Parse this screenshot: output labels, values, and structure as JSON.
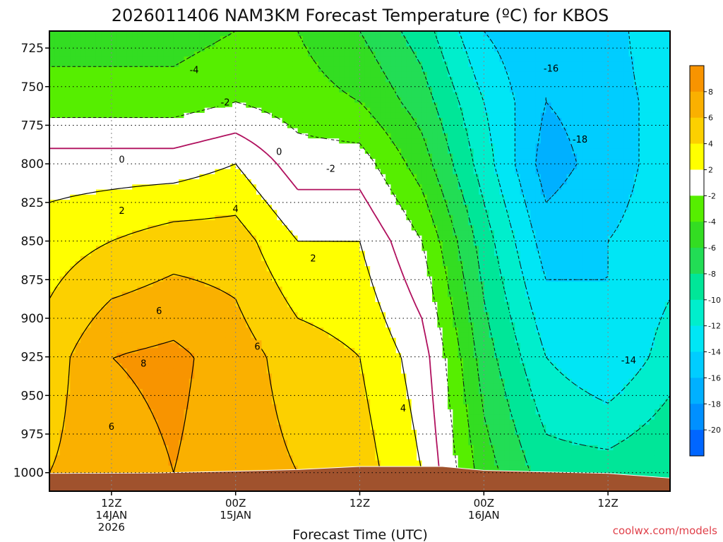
{
  "chart_data": {
    "type": "heatmap",
    "title": "2026011406 NAM3KM Forecast Temperature (ºC) for KBOS",
    "xlabel": "Forecast Time (UTC)",
    "ylabel": "",
    "credit": "coolwx.com/models",
    "x_range_hours": [
      0,
      60
    ],
    "y_range_hpa": [
      714,
      1012
    ],
    "y_ticks": [
      725,
      750,
      775,
      800,
      825,
      850,
      875,
      900,
      925,
      950,
      975,
      1000
    ],
    "y_tick_labels": [
      "725",
      "750",
      "775",
      "800",
      "825",
      "850",
      "875",
      "900",
      "925",
      "950",
      "975",
      "1000"
    ],
    "x_ticks": [
      {
        "hour": 6,
        "line1": "12Z",
        "line2": "14JAN",
        "line3": "2026"
      },
      {
        "hour": 18,
        "line1": "00Z",
        "line2": "15JAN",
        "line3": ""
      },
      {
        "hour": 30,
        "line1": "12Z",
        "line2": "",
        "line3": ""
      },
      {
        "hour": 42,
        "line1": "00Z",
        "line2": "16JAN",
        "line3": ""
      },
      {
        "hour": 54,
        "line1": "12Z",
        "line2": "",
        "line3": ""
      }
    ],
    "grid": true,
    "colorbar_ticks": [
      "8",
      "6",
      "4",
      "2",
      "-2",
      "-4",
      "-6",
      "-8",
      "-10",
      "-12",
      "-14",
      "-16",
      "-18",
      "-20"
    ],
    "colorbar_colors": [
      "#f89400",
      "#fab000",
      "#fcd000",
      "#ffff00",
      "#ffffff",
      "#56ee00",
      "#33dd22",
      "#22dd55",
      "#00e698",
      "#00eecc",
      "#00e6f5",
      "#00cdff",
      "#00b0ff",
      "#0090ff",
      "#0066ff"
    ],
    "colorbar_placement": "right",
    "surface_pressure": [
      {
        "t": 0,
        "p": 1000.5
      },
      {
        "t": 10,
        "p": 1000.2
      },
      {
        "t": 18,
        "p": 999.0
      },
      {
        "t": 24,
        "p": 998.0
      },
      {
        "t": 30,
        "p": 996.0
      },
      {
        "t": 38,
        "p": 996.0
      },
      {
        "t": 42,
        "p": 998.5
      },
      {
        "t": 48,
        "p": 999.5
      },
      {
        "t": 54,
        "p": 1000.5
      },
      {
        "t": 60,
        "p": 1003.5
      }
    ],
    "temperature_profile_by_hour": [
      {
        "t": 0,
        "temps": [
          {
            "p": 714,
            "c": -5
          },
          {
            "p": 760,
            "c": -3
          },
          {
            "p": 800,
            "c": 1
          },
          {
            "p": 850,
            "c": 3
          },
          {
            "p": 925,
            "c": 5
          },
          {
            "p": 1000,
            "c": 6
          }
        ]
      },
      {
        "t": 6,
        "temps": [
          {
            "p": 714,
            "c": -5
          },
          {
            "p": 760,
            "c": -3
          },
          {
            "p": 800,
            "c": 1
          },
          {
            "p": 850,
            "c": 4
          },
          {
            "p": 925,
            "c": 8
          },
          {
            "p": 1000,
            "c": 7
          }
        ]
      },
      {
        "t": 12,
        "temps": [
          {
            "p": 714,
            "c": -5
          },
          {
            "p": 760,
            "c": -3
          },
          {
            "p": 800,
            "c": 1
          },
          {
            "p": 850,
            "c": 5
          },
          {
            "p": 925,
            "c": 8.5
          },
          {
            "p": 1000,
            "c": 8
          }
        ]
      },
      {
        "t": 18,
        "temps": [
          {
            "p": 714,
            "c": -4
          },
          {
            "p": 760,
            "c": -2
          },
          {
            "p": 800,
            "c": 2
          },
          {
            "p": 850,
            "c": 5
          },
          {
            "p": 925,
            "c": 7
          },
          {
            "p": 1000,
            "c": 7
          }
        ]
      },
      {
        "t": 24,
        "temps": [
          {
            "p": 714,
            "c": -4
          },
          {
            "p": 760,
            "c": -3
          },
          {
            "p": 800,
            "c": -1
          },
          {
            "p": 850,
            "c": 2
          },
          {
            "p": 925,
            "c": 5
          },
          {
            "p": 1000,
            "c": 6
          }
        ]
      },
      {
        "t": 30,
        "temps": [
          {
            "p": 714,
            "c": -6
          },
          {
            "p": 760,
            "c": -4
          },
          {
            "p": 800,
            "c": -1
          },
          {
            "p": 850,
            "c": 2
          },
          {
            "p": 925,
            "c": 4
          },
          {
            "p": 1000,
            "c": 5
          }
        ]
      },
      {
        "t": 36,
        "temps": [
          {
            "p": 714,
            "c": -9
          },
          {
            "p": 760,
            "c": -7
          },
          {
            "p": 800,
            "c": -5
          },
          {
            "p": 850,
            "c": -2
          },
          {
            "p": 925,
            "c": 1
          },
          {
            "p": 1000,
            "c": 2
          }
        ]
      },
      {
        "t": 42,
        "temps": [
          {
            "p": 714,
            "c": -14
          },
          {
            "p": 760,
            "c": -12
          },
          {
            "p": 800,
            "c": -11
          },
          {
            "p": 850,
            "c": -9
          },
          {
            "p": 925,
            "c": -7
          },
          {
            "p": 1000,
            "c": -5
          }
        ]
      },
      {
        "t": 48,
        "temps": [
          {
            "p": 714,
            "c": -16
          },
          {
            "p": 760,
            "c": -16
          },
          {
            "p": 800,
            "c": -17
          },
          {
            "p": 850,
            "c": -15
          },
          {
            "p": 925,
            "c": -12
          },
          {
            "p": 1000,
            "c": -9
          }
        ]
      },
      {
        "t": 54,
        "temps": [
          {
            "p": 714,
            "c": -15
          },
          {
            "p": 760,
            "c": -15
          },
          {
            "p": 800,
            "c": -15
          },
          {
            "p": 850,
            "c": -14
          },
          {
            "p": 925,
            "c": -14
          },
          {
            "p": 1000,
            "c": -9
          }
        ]
      },
      {
        "t": 60,
        "temps": [
          {
            "p": 714,
            "c": -12
          },
          {
            "p": 760,
            "c": -13
          },
          {
            "p": 800,
            "c": -13
          },
          {
            "p": 850,
            "c": -13
          },
          {
            "p": 925,
            "c": -11
          },
          {
            "p": 1000,
            "c": -8
          }
        ]
      }
    ],
    "contour_labels": [
      {
        "text": "-4",
        "t": 14.0,
        "p": 739
      },
      {
        "text": "-2",
        "t": 17.0,
        "p": 760
      },
      {
        "text": "0",
        "t": 7.0,
        "p": 797
      },
      {
        "text": "0",
        "t": 22.2,
        "p": 792
      },
      {
        "text": "-2",
        "t": 27.2,
        "p": 803
      },
      {
        "text": "2",
        "t": 7.0,
        "p": 830
      },
      {
        "text": "4",
        "t": 18.0,
        "p": 829
      },
      {
        "text": "2",
        "t": 25.5,
        "p": 861
      },
      {
        "text": "6",
        "t": 10.6,
        "p": 895
      },
      {
        "text": "8",
        "t": 9.1,
        "p": 929
      },
      {
        "text": "6",
        "t": 20.1,
        "p": 918
      },
      {
        "text": "6",
        "t": 6.0,
        "p": 970
      },
      {
        "text": "4",
        "t": 34.2,
        "p": 958
      },
      {
        "text": "-16",
        "t": 48.5,
        "p": 738
      },
      {
        "text": "-18",
        "t": 51.3,
        "p": 784
      },
      {
        "text": "-14",
        "t": 56.0,
        "p": 927
      }
    ]
  }
}
